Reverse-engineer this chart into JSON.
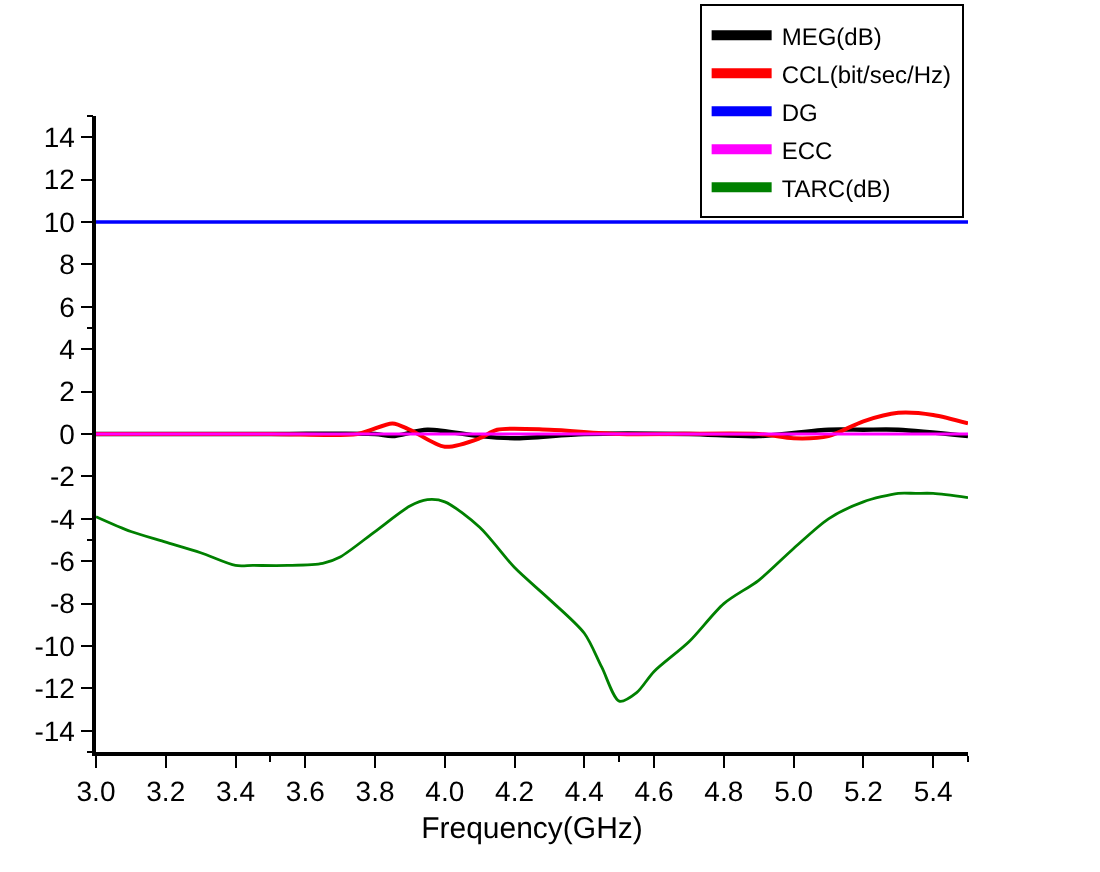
{
  "chart_data": {
    "type": "line",
    "xlabel": "Frequency(GHz)",
    "xlim": [
      3.0,
      5.5
    ],
    "xticks": [
      {
        "value": 3,
        "label": "3.0"
      },
      3.2,
      3.4,
      3.6,
      3.8,
      {
        "value": 4,
        "label": "4.0"
      },
      4.2,
      4.4,
      4.6,
      4.8,
      {
        "value": 5,
        "label": "5.0"
      },
      5.2,
      5.4
    ],
    "ylim": [
      -15,
      15
    ],
    "yticks": [
      -14,
      -12,
      -10,
      -8,
      -6,
      -4,
      -2,
      0,
      2,
      4,
      6,
      8,
      10,
      12,
      14
    ],
    "grid": false,
    "legend": "top right",
    "marker": "none",
    "line_style": "solid",
    "series": [
      {
        "name": "MEG(dB)",
        "color": "#000000",
        "x": [
          3.0,
          3.5,
          3.8,
          3.85,
          3.95,
          4.1,
          4.2,
          4.4,
          4.7,
          4.9,
          5.1,
          5.2,
          5.3,
          5.5
        ],
        "values": [
          0,
          0,
          0,
          -0.1,
          0.2,
          -0.1,
          -0.2,
          0,
          0,
          -0.1,
          0.2,
          0.2,
          0.2,
          -0.1
        ]
      },
      {
        "name": "CCL(bit/sec/Hz)",
        "color": "#ff0000",
        "x": [
          3.0,
          3.5,
          3.75,
          3.85,
          3.9,
          4.0,
          4.1,
          4.15,
          4.3,
          4.5,
          4.9,
          5.0,
          5.1,
          5.2,
          5.3,
          5.4,
          5.5
        ],
        "values": [
          0,
          0,
          0,
          0.5,
          0.2,
          -0.6,
          -0.2,
          0.2,
          0.2,
          0,
          0,
          -0.2,
          -0.1,
          0.6,
          1.0,
          0.9,
          0.5
        ]
      },
      {
        "name": "DG",
        "color": "#0000ff",
        "x": [
          3.0,
          3.5,
          4.0,
          4.5,
          5.0,
          5.5
        ],
        "values": [
          10,
          10,
          10,
          10,
          10,
          10
        ]
      },
      {
        "name": "ECC",
        "color": "#ff00ff",
        "x": [
          3.0,
          3.5,
          4.0,
          4.5,
          5.0,
          5.5
        ],
        "values": [
          0,
          0,
          0,
          0,
          0,
          0
        ]
      },
      {
        "name": "TARC(dB)",
        "color": "#008000",
        "x": [
          3.0,
          3.1,
          3.2,
          3.3,
          3.4,
          3.45,
          3.55,
          3.65,
          3.7,
          3.8,
          3.9,
          3.95,
          4.0,
          4.1,
          4.2,
          4.3,
          4.4,
          4.45,
          4.5,
          4.55,
          4.6,
          4.7,
          4.8,
          4.9,
          5.0,
          5.1,
          5.2,
          5.3,
          5.35,
          5.4,
          5.5
        ],
        "values": [
          -3.9,
          -4.6,
          -5.1,
          -5.6,
          -6.2,
          -6.2,
          -6.2,
          -6.1,
          -5.8,
          -4.6,
          -3.4,
          -3.1,
          -3.2,
          -4.4,
          -6.3,
          -7.8,
          -9.4,
          -11,
          -12.6,
          -12.2,
          -11.2,
          -9.8,
          -8,
          -6.9,
          -5.4,
          -4,
          -3.2,
          -2.8,
          -2.8,
          -2.8,
          -3
        ]
      }
    ]
  }
}
